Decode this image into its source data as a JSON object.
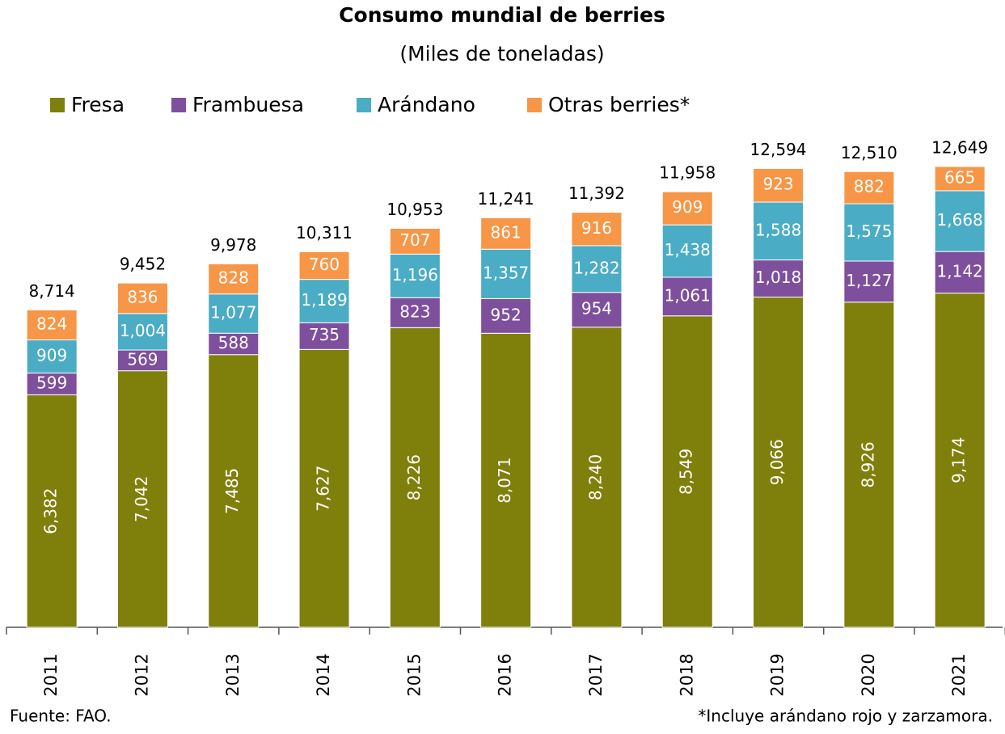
{
  "chart_data": {
    "type": "stacked_bar",
    "title": "Consumo mundial de berries",
    "subtitle": "(Miles de toneladas)",
    "categories": [
      "2011",
      "2012",
      "2013",
      "2014",
      "2015",
      "2016",
      "2017",
      "2018",
      "2019",
      "2020",
      "2021"
    ],
    "series": [
      {
        "name": "Fresa",
        "color": "#7f7f0c",
        "values": [
          6382,
          7042,
          7485,
          7627,
          8226,
          8071,
          8240,
          8549,
          9066,
          8926,
          9174
        ],
        "value_labels": [
          "6,382",
          "7,042",
          "7,485",
          "7,627",
          "8,226",
          "8,071",
          "8,240",
          "8,549",
          "9,066",
          "8,926",
          "9,174"
        ]
      },
      {
        "name": "Frambuesa",
        "color": "#7e4f9c",
        "values": [
          599,
          569,
          588,
          735,
          823,
          952,
          954,
          1061,
          1018,
          1127,
          1142
        ],
        "value_labels": [
          "599",
          "569",
          "588",
          "735",
          "823",
          "952",
          "954",
          "1,061",
          "1,018",
          "1,127",
          "1,142"
        ]
      },
      {
        "name": "Arándano",
        "color": "#4aacc5",
        "values": [
          909,
          1004,
          1077,
          1189,
          1196,
          1357,
          1282,
          1438,
          1588,
          1575,
          1668
        ],
        "value_labels": [
          "909",
          "1,004",
          "1,077",
          "1,189",
          "1,196",
          "1,357",
          "1,282",
          "1,438",
          "1,588",
          "1,575",
          "1,668"
        ]
      },
      {
        "name": "Otras berries*",
        "color": "#f79646",
        "values": [
          824,
          836,
          828,
          760,
          707,
          861,
          916,
          909,
          923,
          882,
          665
        ],
        "value_labels": [
          "824",
          "836",
          "828",
          "760",
          "707",
          "861",
          "916",
          "909",
          "923",
          "882",
          "665"
        ]
      }
    ],
    "totals": [
      8714,
      9452,
      9978,
      10311,
      10953,
      11241,
      11392,
      11958,
      12594,
      12510,
      12649
    ],
    "total_labels": [
      "8,714",
      "9,452",
      "9,978",
      "10,311",
      "10,953",
      "11,241",
      "11,392",
      "11,958",
      "12,594",
      "12,510",
      "12,649"
    ],
    "source": "Fuente: FAO.",
    "note": "*Incluye arándano rojo y zarzamora."
  }
}
